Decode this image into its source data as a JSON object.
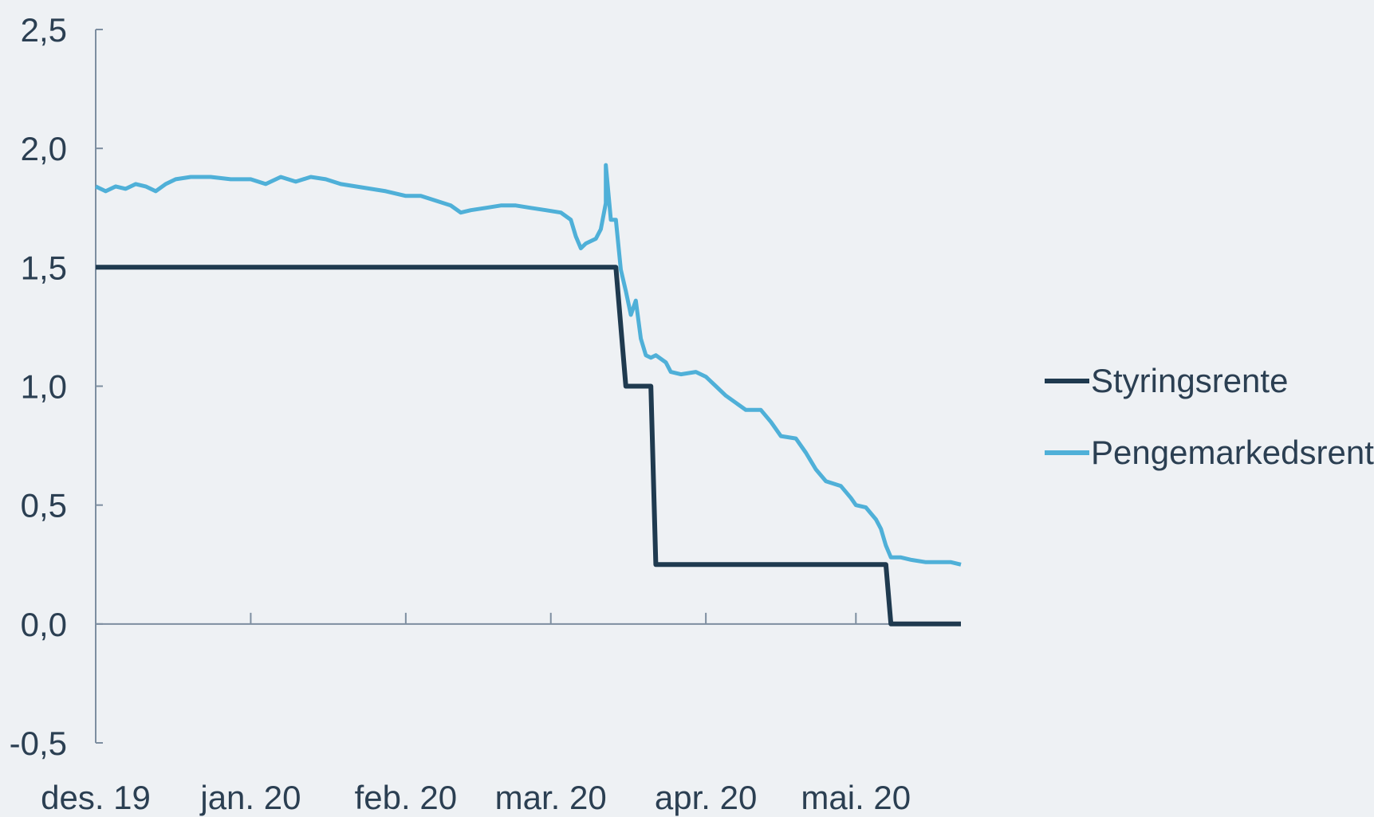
{
  "chart_data": {
    "type": "line",
    "title": "",
    "xlabel": "",
    "ylabel": "",
    "ylim": [
      -0.5,
      2.5
    ],
    "yticks": [
      "2,5",
      "2,0",
      "1,5",
      "1,0",
      "0,5",
      "0,0",
      "-0,5"
    ],
    "ytick_values": [
      2.5,
      2.0,
      1.5,
      1.0,
      0.5,
      0.0,
      -0.5
    ],
    "xlim": [
      "2019-12-01",
      "2020-05-22"
    ],
    "xticks": [
      {
        "label": "des. 19",
        "date": "2019-12-01"
      },
      {
        "label": "jan. 20",
        "date": "2020-01-01"
      },
      {
        "label": "feb. 20",
        "date": "2020-02-01"
      },
      {
        "label": "mar. 20",
        "date": "2020-03-01"
      },
      {
        "label": "apr. 20",
        "date": "2020-04-01"
      },
      {
        "label": "mai. 20",
        "date": "2020-05-01"
      }
    ],
    "legend_position": "right",
    "grid": false,
    "series": [
      {
        "name": "Styringsrente",
        "color": "#1f3a4f",
        "style": "step",
        "points": [
          [
            "2019-12-01",
            1.5
          ],
          [
            "2020-03-14",
            1.5
          ],
          [
            "2020-03-16",
            1.0
          ],
          [
            "2020-03-21",
            1.0
          ],
          [
            "2020-03-22",
            0.25
          ],
          [
            "2020-05-07",
            0.25
          ],
          [
            "2020-05-08",
            0.0
          ],
          [
            "2020-05-22",
            0.0
          ]
        ]
      },
      {
        "name": "Pengemarkedsrente",
        "color": "#4fb0d8",
        "style": "line",
        "points": [
          [
            "2019-12-01",
            1.84
          ],
          [
            "2019-12-03",
            1.82
          ],
          [
            "2019-12-05",
            1.84
          ],
          [
            "2019-12-07",
            1.83
          ],
          [
            "2019-12-09",
            1.85
          ],
          [
            "2019-12-11",
            1.84
          ],
          [
            "2019-12-13",
            1.82
          ],
          [
            "2019-12-15",
            1.85
          ],
          [
            "2019-12-17",
            1.87
          ],
          [
            "2019-12-20",
            1.88
          ],
          [
            "2019-12-24",
            1.88
          ],
          [
            "2019-12-28",
            1.87
          ],
          [
            "2020-01-01",
            1.87
          ],
          [
            "2020-01-04",
            1.85
          ],
          [
            "2020-01-07",
            1.88
          ],
          [
            "2020-01-10",
            1.86
          ],
          [
            "2020-01-13",
            1.88
          ],
          [
            "2020-01-16",
            1.87
          ],
          [
            "2020-01-19",
            1.85
          ],
          [
            "2020-01-22",
            1.84
          ],
          [
            "2020-01-25",
            1.83
          ],
          [
            "2020-01-28",
            1.82
          ],
          [
            "2020-02-01",
            1.8
          ],
          [
            "2020-02-04",
            1.8
          ],
          [
            "2020-02-07",
            1.78
          ],
          [
            "2020-02-10",
            1.76
          ],
          [
            "2020-02-12",
            1.73
          ],
          [
            "2020-02-14",
            1.74
          ],
          [
            "2020-02-17",
            1.75
          ],
          [
            "2020-02-20",
            1.76
          ],
          [
            "2020-02-23",
            1.76
          ],
          [
            "2020-02-26",
            1.75
          ],
          [
            "2020-02-29",
            1.74
          ],
          [
            "2020-03-03",
            1.73
          ],
          [
            "2020-03-05",
            1.7
          ],
          [
            "2020-03-06",
            1.63
          ],
          [
            "2020-03-07",
            1.58
          ],
          [
            "2020-03-08",
            1.6
          ],
          [
            "2020-03-10",
            1.62
          ],
          [
            "2020-03-11",
            1.66
          ],
          [
            "2020-03-12",
            1.77
          ],
          [
            "2020-03-12",
            1.93
          ],
          [
            "2020-03-13",
            1.7
          ],
          [
            "2020-03-14",
            1.7
          ],
          [
            "2020-03-15",
            1.49
          ],
          [
            "2020-03-16",
            1.4
          ],
          [
            "2020-03-17",
            1.3
          ],
          [
            "2020-03-18",
            1.36
          ],
          [
            "2020-03-19",
            1.2
          ],
          [
            "2020-03-20",
            1.13
          ],
          [
            "2020-03-21",
            1.12
          ],
          [
            "2020-03-22",
            1.13
          ],
          [
            "2020-03-24",
            1.1
          ],
          [
            "2020-03-25",
            1.06
          ],
          [
            "2020-03-27",
            1.05
          ],
          [
            "2020-03-30",
            1.06
          ],
          [
            "2020-04-01",
            1.04
          ],
          [
            "2020-04-03",
            1.0
          ],
          [
            "2020-04-05",
            0.96
          ],
          [
            "2020-04-07",
            0.93
          ],
          [
            "2020-04-09",
            0.9
          ],
          [
            "2020-04-12",
            0.9
          ],
          [
            "2020-04-14",
            0.85
          ],
          [
            "2020-04-16",
            0.79
          ],
          [
            "2020-04-19",
            0.78
          ],
          [
            "2020-04-21",
            0.72
          ],
          [
            "2020-04-23",
            0.65
          ],
          [
            "2020-04-25",
            0.6
          ],
          [
            "2020-04-28",
            0.58
          ],
          [
            "2020-04-30",
            0.53
          ],
          [
            "2020-05-01",
            0.5
          ],
          [
            "2020-05-03",
            0.49
          ],
          [
            "2020-05-05",
            0.44
          ],
          [
            "2020-05-06",
            0.4
          ],
          [
            "2020-05-07",
            0.33
          ],
          [
            "2020-05-08",
            0.28
          ],
          [
            "2020-05-10",
            0.28
          ],
          [
            "2020-05-12",
            0.27
          ],
          [
            "2020-05-15",
            0.26
          ],
          [
            "2020-05-18",
            0.26
          ],
          [
            "2020-05-20",
            0.26
          ],
          [
            "2020-05-22",
            0.25
          ]
        ]
      }
    ]
  }
}
